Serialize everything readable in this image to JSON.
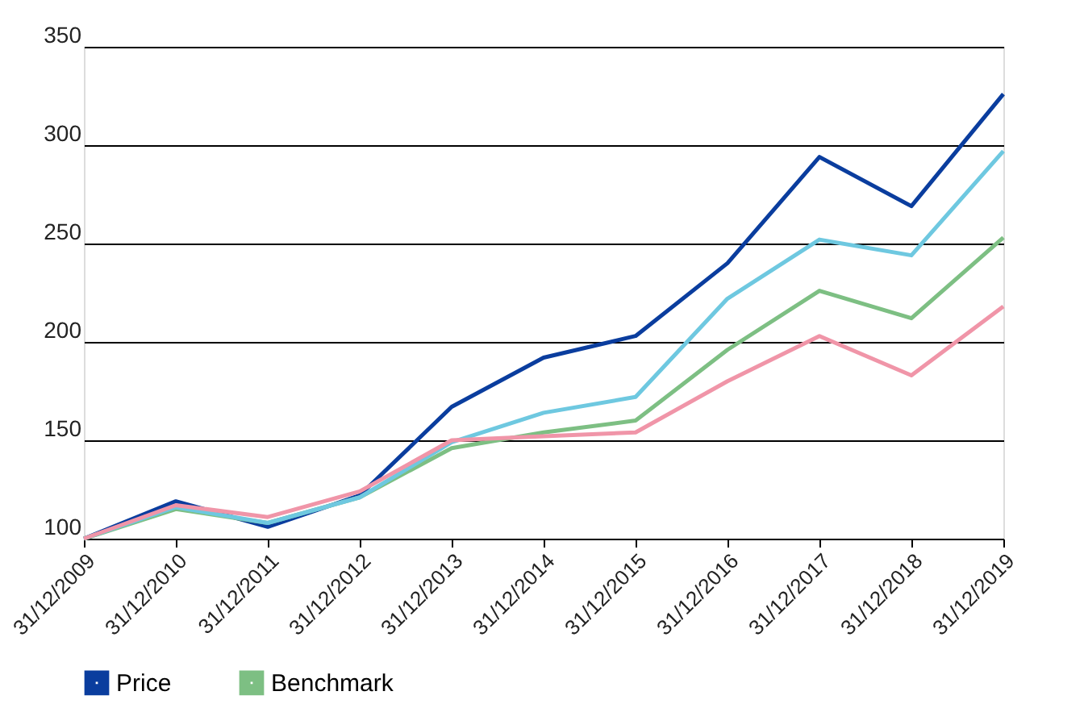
{
  "chart_data": {
    "type": "line",
    "categories": [
      "31/12/2009",
      "31/12/2010",
      "31/12/2011",
      "31/12/2012",
      "31/12/2013",
      "31/12/2014",
      "31/12/2015",
      "31/12/2016",
      "31/12/2017",
      "31/12/2018",
      "31/12/2019"
    ],
    "series": [
      {
        "name": "Price",
        "color": "#0a3d9e",
        "values": [
          100,
          119,
          106,
          122,
          167,
          192,
          203,
          240,
          294,
          269,
          326
        ]
      },
      {
        "name": "Benchmark",
        "color": "#7dbf83",
        "values": [
          100,
          115,
          108,
          121,
          146,
          154,
          160,
          196,
          226,
          212,
          253
        ]
      },
      {
        "color": "#6ec8e0",
        "values": [
          100,
          116,
          108,
          121,
          149,
          164,
          172,
          222,
          252,
          244,
          297
        ]
      },
      {
        "color": "#f095a8",
        "values": [
          100,
          117,
          111,
          124,
          150,
          152,
          154,
          180,
          203,
          183,
          218
        ]
      }
    ],
    "ylim": [
      100,
      350
    ],
    "yticks": [
      100,
      150,
      200,
      250,
      300,
      350
    ],
    "grid": "y",
    "legend": "bottom",
    "marker": "none",
    "line_style": "solid"
  }
}
